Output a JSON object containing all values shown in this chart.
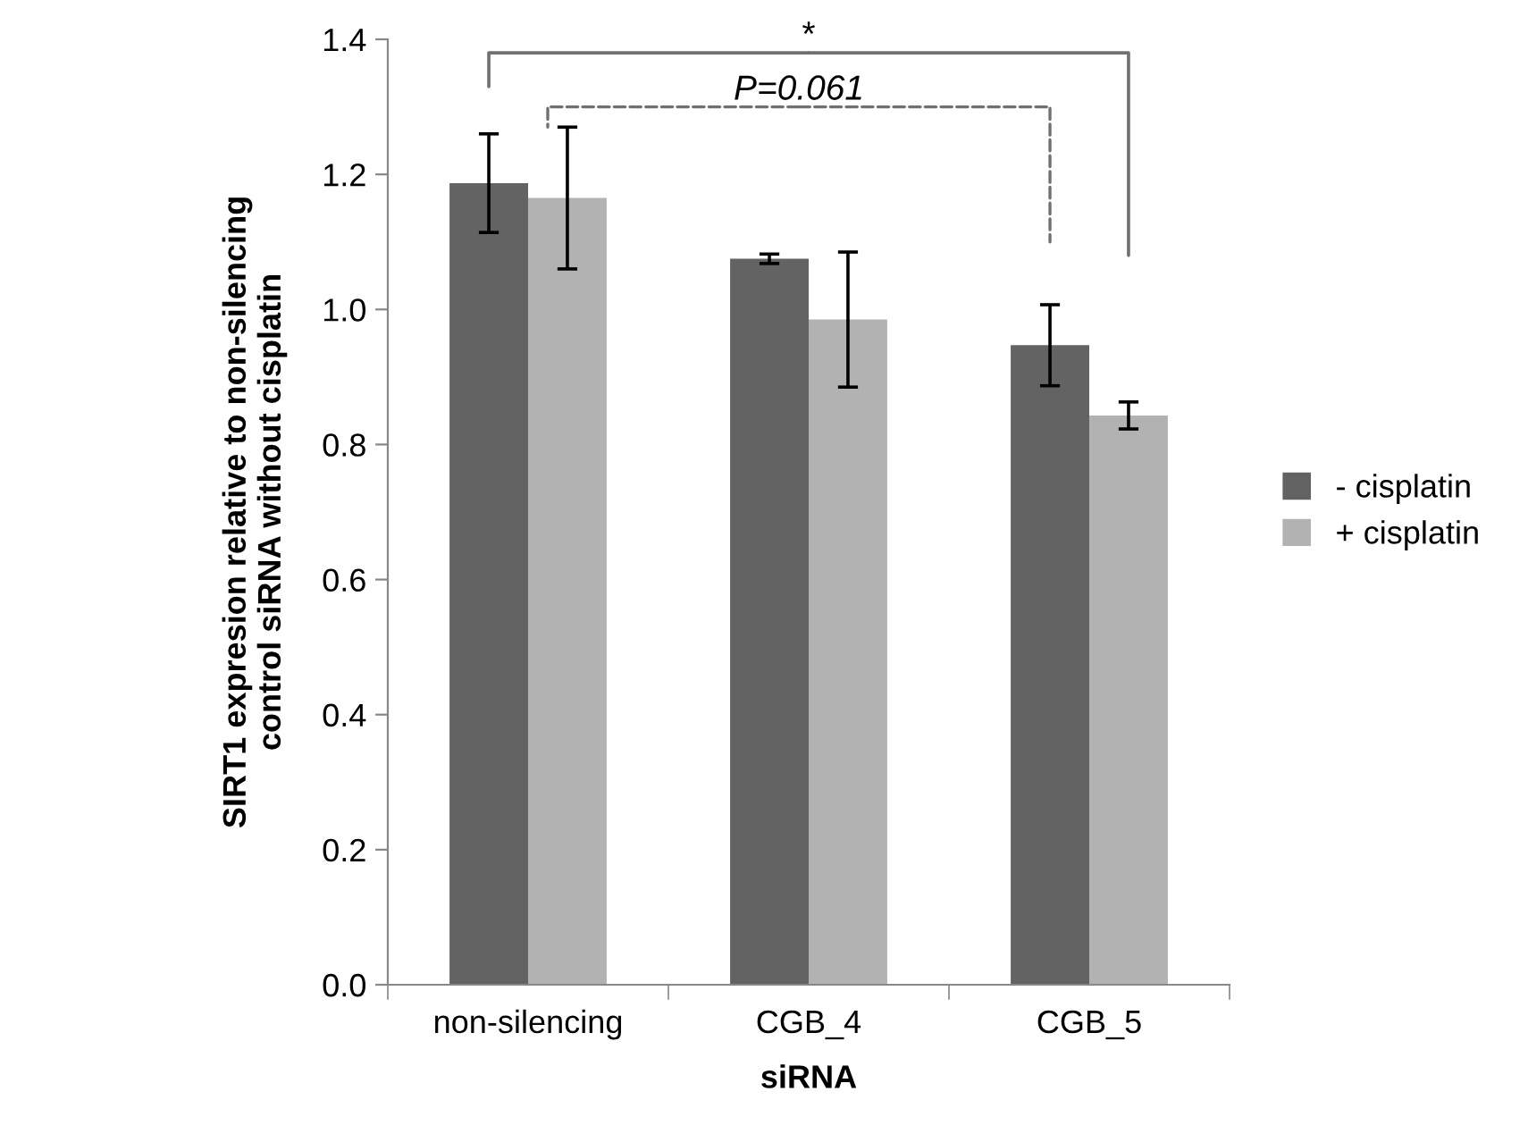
{
  "chart_data": {
    "type": "bar",
    "xlabel": "siRNA",
    "ylabel": "SIRT1 expresion relative to non-silencing\ncontrol siRNA without cisplatin",
    "categories": [
      "non-silencing",
      "CGB_4",
      "CGB_5"
    ],
    "series": [
      {
        "name": "- cisplatin",
        "color": "#636363",
        "values": [
          1.187,
          1.075,
          0.947
        ],
        "errors": [
          0.073,
          0.007,
          0.06
        ]
      },
      {
        "name": "+ cisplatin",
        "color": "#b2b2b2",
        "values": [
          1.165,
          0.985,
          0.843
        ],
        "errors": [
          0.105,
          0.1,
          0.02
        ]
      }
    ],
    "ylim": [
      0,
      1.4
    ],
    "yticks": [
      {
        "value": 0,
        "label": "0.0"
      },
      {
        "value": 0.2,
        "label": "0.2"
      },
      {
        "value": 0.4,
        "label": "0.4"
      },
      {
        "value": 0.6,
        "label": "0.6"
      },
      {
        "value": 0.8,
        "label": "0.8"
      },
      {
        "value": 1.0,
        "label": "1.0"
      },
      {
        "value": 1.2,
        "label": "1.2"
      },
      {
        "value": 1.4,
        "label": "1.4"
      }
    ],
    "annotations": [
      "*",
      "P=0.061"
    ],
    "grid": false,
    "legend": "right"
  }
}
